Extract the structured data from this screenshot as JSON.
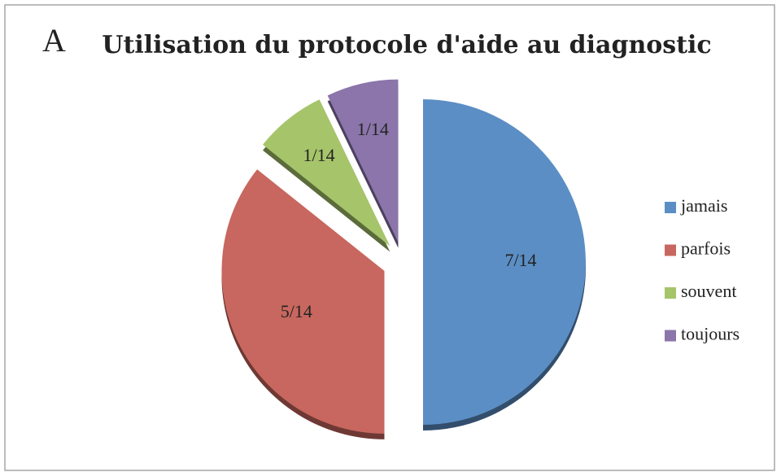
{
  "chart_data": {
    "type": "pie",
    "annotation": "A",
    "title": "Utilisation du protocole d'aide au diagnostic",
    "categories": [
      "jamais",
      "parfois",
      "souvent",
      "toujours"
    ],
    "values": [
      7,
      5,
      1,
      1
    ],
    "value_labels": [
      "7/14",
      "5/14",
      "1/14",
      "1/14"
    ],
    "colors": [
      "#5b8ec4",
      "#c8675f",
      "#a6c46a",
      "#8b75aa"
    ],
    "legend": "right"
  }
}
